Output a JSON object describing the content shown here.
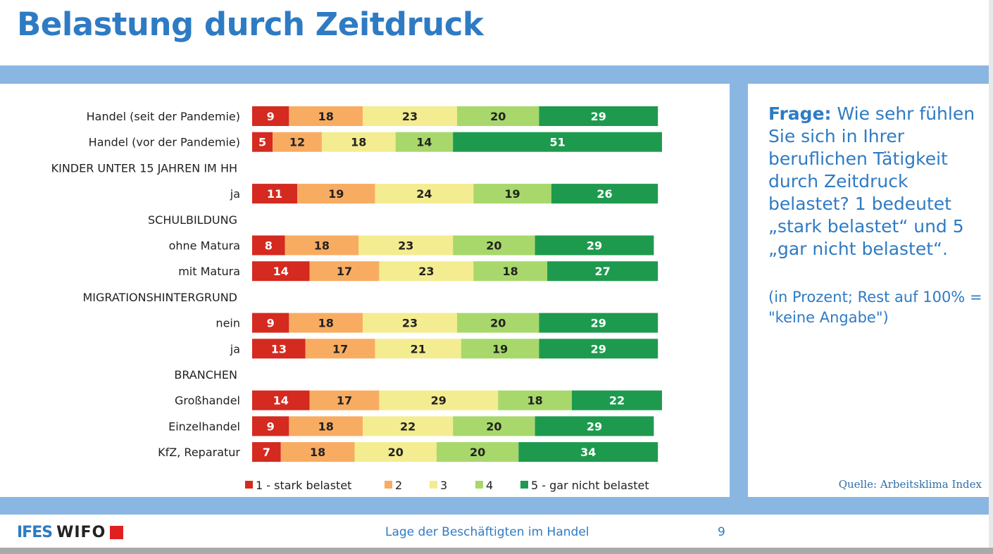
{
  "title": "Belastung durch Zeitdruck",
  "question_label": "Frage:",
  "question_text": "Wie sehr fühlen Sie sich in Ihrer beruflichen Tätigkeit durch Zeitdruck belastet? 1 bedeutet „stark belastet“ und 5 „gar nicht belastet“.",
  "note": "(in Prozent; Rest auf 100% = \"keine Angabe\")",
  "source": "Quelle: Arbeitsklima Index",
  "footer": {
    "logo_left": "IFES",
    "logo_right": "WIFO",
    "text": "Lage der Beschäftigten im Handel",
    "page": "9"
  },
  "colors": [
    "#d42a20",
    "#f8ac62",
    "#f4ec90",
    "#a8d86c",
    "#1e9a4e"
  ],
  "chart_data": {
    "type": "bar",
    "orientation": "horizontal",
    "stacked": true,
    "legend_position": "bottom",
    "series": [
      {
        "name": "1 - stark belastet"
      },
      {
        "name": "2"
      },
      {
        "name": "3"
      },
      {
        "name": "4"
      },
      {
        "name": "5 - gar nicht belastet"
      }
    ],
    "rows": [
      {
        "label": "Handel (seit der Pandemie)",
        "values": [
          9,
          18,
          23,
          20,
          29
        ]
      },
      {
        "label": "Handel (vor der Pandemie)",
        "values": [
          5,
          12,
          18,
          14,
          51
        ]
      },
      {
        "label": "KINDER UNTER 15 JAHREN IM HH",
        "header": true
      },
      {
        "label": "ja",
        "values": [
          11,
          19,
          24,
          19,
          26
        ]
      },
      {
        "label": "SCHULBILDUNG",
        "header": true
      },
      {
        "label": "ohne Matura",
        "values": [
          8,
          18,
          23,
          20,
          29
        ]
      },
      {
        "label": "mit Matura",
        "values": [
          14,
          17,
          23,
          18,
          27
        ]
      },
      {
        "label": "MIGRATIONSHINTERGRUND",
        "header": true
      },
      {
        "label": "nein",
        "values": [
          9,
          18,
          23,
          20,
          29
        ]
      },
      {
        "label": "ja",
        "values": [
          13,
          17,
          21,
          19,
          29
        ]
      },
      {
        "label": "BRANCHEN",
        "header": true
      },
      {
        "label": "Großhandel",
        "values": [
          14,
          17,
          29,
          18,
          22
        ]
      },
      {
        "label": "Einzelhandel",
        "values": [
          9,
          18,
          22,
          20,
          29
        ]
      },
      {
        "label": "KfZ, Reparatur",
        "values": [
          7,
          18,
          20,
          20,
          34
        ]
      }
    ]
  }
}
